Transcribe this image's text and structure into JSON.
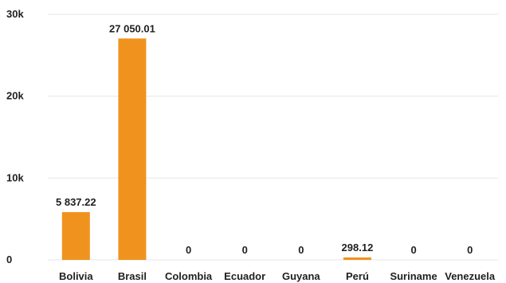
{
  "chart_data": {
    "type": "bar",
    "title": "",
    "xlabel": "",
    "ylabel": "",
    "categories": [
      "Bolivia",
      "Brasil",
      "Colombia",
      "Ecuador",
      "Guyana",
      "Perú",
      "Suriname",
      "Venezuela"
    ],
    "values": [
      5837.22,
      27050.01,
      0,
      0,
      0,
      298.12,
      0,
      0
    ],
    "data_labels": [
      "5 837.22",
      "27 050.01",
      "0",
      "0",
      "0",
      "298.12",
      "0",
      "0"
    ],
    "ylim": [
      0,
      30000
    ],
    "yticks": [
      {
        "value": 0,
        "label": "0"
      },
      {
        "value": 10000,
        "label": "10k"
      },
      {
        "value": 20000,
        "label": "20k"
      },
      {
        "value": 30000,
        "label": "30k"
      }
    ],
    "grid": true,
    "legend": "none",
    "bar_color": "#F0921E",
    "grid_color": "#E6E6E6",
    "text_color": "#1F1F1F"
  }
}
